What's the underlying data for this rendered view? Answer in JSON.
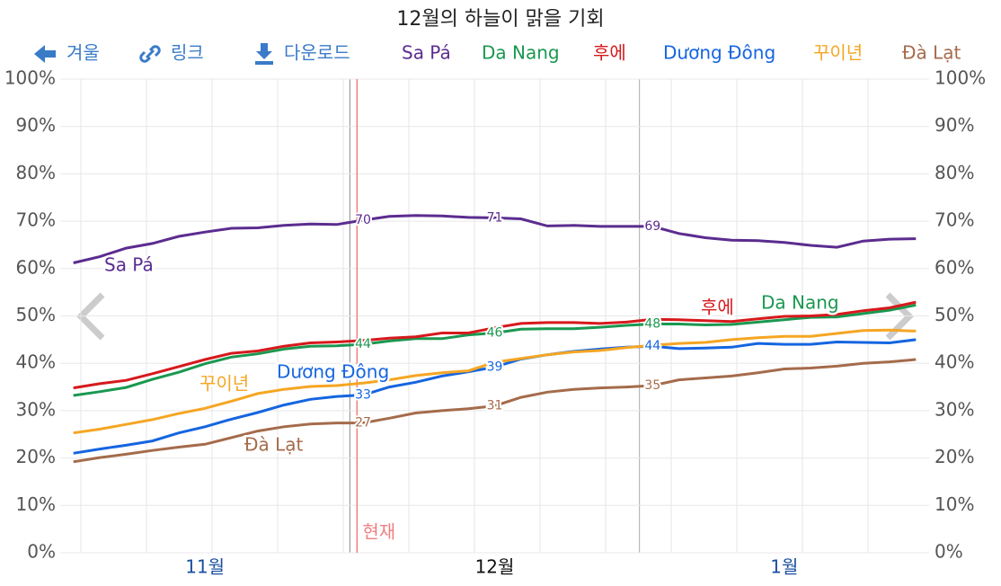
{
  "chart_data": {
    "type": "line",
    "title": "12월의 하늘이 맑을 기회",
    "buttons": [
      "겨울",
      "링크",
      "다운로드"
    ],
    "annotation": "현재",
    "categories": [
      null,
      null,
      null,
      null,
      null,
      "11월",
      null,
      null,
      null,
      null,
      null,
      null,
      null,
      null,
      null,
      null,
      "12월",
      null,
      null,
      null,
      null,
      null,
      null,
      null,
      null,
      null,
      null,
      "1월",
      null,
      null,
      null,
      null,
      null
    ],
    "ylim": [
      0,
      100
    ],
    "yticks": [
      {
        "value": 0,
        "label": "0%"
      },
      {
        "value": 10,
        "label": "10%"
      },
      {
        "value": 20,
        "label": "20%"
      },
      {
        "value": 30,
        "label": "30%"
      },
      {
        "value": 40,
        "label": "40%"
      },
      {
        "value": 50,
        "label": "50%"
      },
      {
        "value": 60,
        "label": "60%"
      },
      {
        "value": 70,
        "label": "70%"
      },
      {
        "value": 80,
        "label": "80%"
      },
      {
        "value": 90,
        "label": "90%"
      },
      {
        "value": 100,
        "label": "100%"
      }
    ],
    "grid": true,
    "series": [
      {
        "name": "Sa Pá",
        "color": "#5b2c8f",
        "values": [
          61.2,
          62.5,
          64.3,
          65.3,
          66.8,
          67.7,
          68.5,
          68.6,
          69.1,
          69.4,
          69.3,
          70.2,
          71.0,
          71.2,
          71.1,
          70.8,
          70.7,
          70.5,
          69.0,
          69.1,
          68.9,
          68.9,
          68.9,
          67.4,
          66.5,
          66.0,
          65.9,
          65.5,
          64.9,
          64.5,
          65.8,
          66.2,
          66.3
        ],
        "value_labels": [
          null,
          null,
          null,
          null,
          null,
          null,
          null,
          null,
          null,
          null,
          null,
          "70",
          null,
          null,
          null,
          null,
          "71",
          null,
          null,
          null,
          null,
          null,
          "69",
          null,
          null,
          null,
          null,
          null,
          null,
          null,
          null,
          null,
          null
        ]
      },
      {
        "name": "Da Nang",
        "color": "#1a9850",
        "values": [
          33.2,
          34.0,
          34.9,
          36.6,
          38.1,
          39.9,
          41.3,
          42.0,
          43.0,
          43.6,
          43.7,
          44.0,
          44.7,
          45.2,
          45.2,
          46.0,
          46.4,
          47.2,
          47.3,
          47.3,
          47.6,
          48.0,
          48.3,
          48.3,
          48.1,
          48.2,
          48.7,
          49.2,
          49.7,
          49.8,
          50.5,
          51.2,
          52.3
        ],
        "value_labels": [
          null,
          null,
          null,
          null,
          null,
          null,
          null,
          null,
          null,
          null,
          null,
          "44",
          null,
          null,
          null,
          null,
          "46",
          null,
          null,
          null,
          null,
          null,
          "48",
          null,
          null,
          null,
          null,
          null,
          null,
          null,
          null,
          null,
          null
        ]
      },
      {
        "name": "후에",
        "color": "#d7191c",
        "values": [
          34.8,
          35.7,
          36.4,
          37.8,
          39.3,
          40.8,
          42.1,
          42.6,
          43.6,
          44.3,
          44.5,
          44.8,
          45.3,
          45.6,
          46.4,
          46.4,
          47.5,
          48.4,
          48.6,
          48.6,
          48.4,
          48.7,
          49.3,
          49.2,
          49.0,
          48.8,
          49.4,
          49.9,
          50.0,
          50.3,
          51.1,
          51.7,
          52.9
        ]
      },
      {
        "name": "Dương Đông",
        "color": "#1565e0",
        "values": [
          21.0,
          21.9,
          22.7,
          23.6,
          25.3,
          26.6,
          28.2,
          29.6,
          31.2,
          32.4,
          33.0,
          33.3,
          35.0,
          36.0,
          37.3,
          38.2,
          39.2,
          40.9,
          41.8,
          42.5,
          43.0,
          43.4,
          43.6,
          43.1,
          43.2,
          43.4,
          44.2,
          44.0,
          44.0,
          44.5,
          44.4,
          44.3,
          45.0
        ],
        "value_labels": [
          null,
          null,
          null,
          null,
          null,
          null,
          null,
          null,
          null,
          null,
          null,
          "33",
          null,
          null,
          null,
          null,
          "39",
          null,
          null,
          null,
          null,
          null,
          "44",
          null,
          null,
          null,
          null,
          null,
          null,
          null,
          null,
          null,
          null
        ]
      },
      {
        "name": "꾸이년",
        "color": "#f5a623",
        "values": [
          25.3,
          26.1,
          27.1,
          28.1,
          29.4,
          30.5,
          32.0,
          33.6,
          34.5,
          35.1,
          35.3,
          35.8,
          36.5,
          37.4,
          38.0,
          38.4,
          40.2,
          41.0,
          41.8,
          42.4,
          42.7,
          43.3,
          43.8,
          44.2,
          44.4,
          45.0,
          45.4,
          45.7,
          45.7,
          46.3,
          46.9,
          47.0,
          46.8
        ]
      },
      {
        "name": "Đà Lạt",
        "color": "#a56b4b",
        "values": [
          19.2,
          20.1,
          20.8,
          21.6,
          22.3,
          22.9,
          24.3,
          25.7,
          26.6,
          27.2,
          27.4,
          27.4,
          28.4,
          29.5,
          30.0,
          30.4,
          31.0,
          32.8,
          33.9,
          34.5,
          34.8,
          35.0,
          35.3,
          36.5,
          36.9,
          37.3,
          38.0,
          38.8,
          39.0,
          39.4,
          40.0,
          40.3,
          40.8
        ],
        "value_labels": [
          null,
          null,
          null,
          null,
          null,
          null,
          null,
          null,
          null,
          null,
          null,
          "27",
          null,
          null,
          null,
          null,
          "31",
          null,
          null,
          null,
          null,
          null,
          "35",
          null,
          null,
          null,
          null,
          null,
          null,
          null,
          null,
          null,
          null
        ]
      }
    ]
  }
}
